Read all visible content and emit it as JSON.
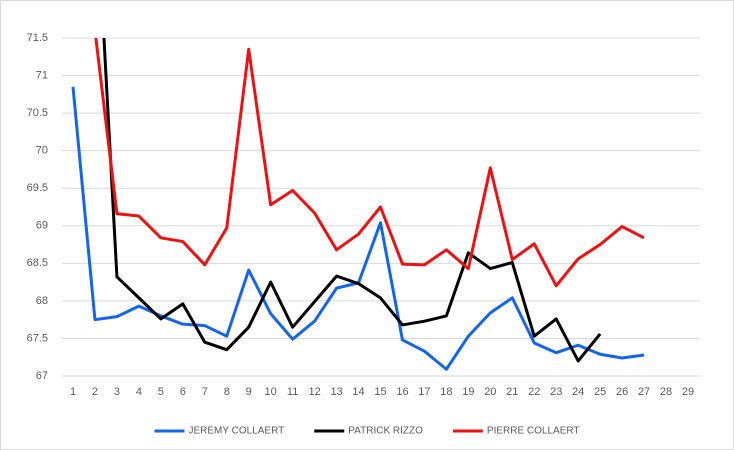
{
  "chart_data": {
    "type": "line",
    "categories": [
      "1",
      "2",
      "3",
      "4",
      "5",
      "6",
      "7",
      "8",
      "9",
      "10",
      "11",
      "12",
      "13",
      "14",
      "15",
      "16",
      "17",
      "18",
      "19",
      "20",
      "21",
      "22",
      "23",
      "24",
      "25",
      "26",
      "27",
      "28",
      "29"
    ],
    "series": [
      {
        "name": "JEREMY COLLAERT",
        "color": "#1565e8",
        "values": [
          70.85,
          67.75,
          67.79,
          67.93,
          67.8,
          67.69,
          67.67,
          67.53,
          68.41,
          67.83,
          67.49,
          67.73,
          68.17,
          68.24,
          69.04,
          67.48,
          67.33,
          67.09,
          67.53,
          67.84,
          68.04,
          67.44,
          67.31,
          67.41,
          67.29,
          67.24,
          67.28,
          null,
          null
        ]
      },
      {
        "name": "PATRICK RIZZO",
        "color": "#000000",
        "values": [
          null,
          73.7,
          68.32,
          68.04,
          67.76,
          67.96,
          67.45,
          67.35,
          67.65,
          68.25,
          67.65,
          67.99,
          68.33,
          68.23,
          68.04,
          67.68,
          67.73,
          67.8,
          68.64,
          68.43,
          68.51,
          67.53,
          67.76,
          67.2,
          67.56,
          null,
          null,
          null,
          null
        ]
      },
      {
        "name": "PIERRE COLLAERT",
        "color": "#ee1111",
        "values": [
          null,
          71.6,
          69.16,
          69.13,
          68.84,
          68.79,
          68.48,
          68.97,
          71.35,
          69.28,
          69.47,
          69.17,
          68.68,
          68.89,
          69.25,
          68.49,
          68.48,
          68.68,
          68.43,
          69.77,
          68.55,
          68.76,
          68.2,
          68.56,
          68.75,
          68.99,
          68.84,
          null,
          null
        ]
      }
    ],
    "ylim": [
      67,
      71.5
    ],
    "yticks": [
      67,
      67.5,
      68,
      68.5,
      69,
      69.5,
      70,
      70.5,
      71,
      71.5
    ],
    "grid": true,
    "legend": "bottom"
  }
}
